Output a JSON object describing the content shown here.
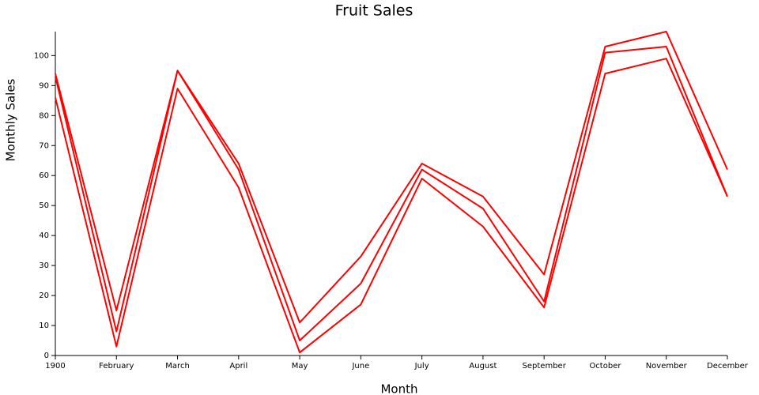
{
  "chart_data": {
    "type": "line",
    "title": "Fruit Sales",
    "x_label": "Month",
    "y_label": "Monthly Sales",
    "categories": [
      "1900",
      "February",
      "March",
      "April",
      "May",
      "June",
      "July",
      "August",
      "September",
      "October",
      "November",
      "December"
    ],
    "series": [
      {
        "color": "#ff0000",
        "values": [
          94,
          15,
          95,
          64,
          11,
          33,
          64,
          53,
          27,
          103,
          108,
          62
        ]
      },
      {
        "color": "#ff0000",
        "values": [
          93,
          8,
          95,
          62,
          5,
          24,
          62,
          49,
          18,
          101,
          103,
          53
        ]
      },
      {
        "color": "#ff0000",
        "values": [
          86,
          3,
          89,
          56,
          1,
          17,
          59,
          43,
          16,
          94,
          99,
          53
        ]
      }
    ],
    "ylim": [
      0,
      108
    ],
    "yticks": [
      0,
      10,
      20,
      30,
      40,
      50,
      60,
      70,
      80,
      90,
      100
    ],
    "grid": false
  }
}
